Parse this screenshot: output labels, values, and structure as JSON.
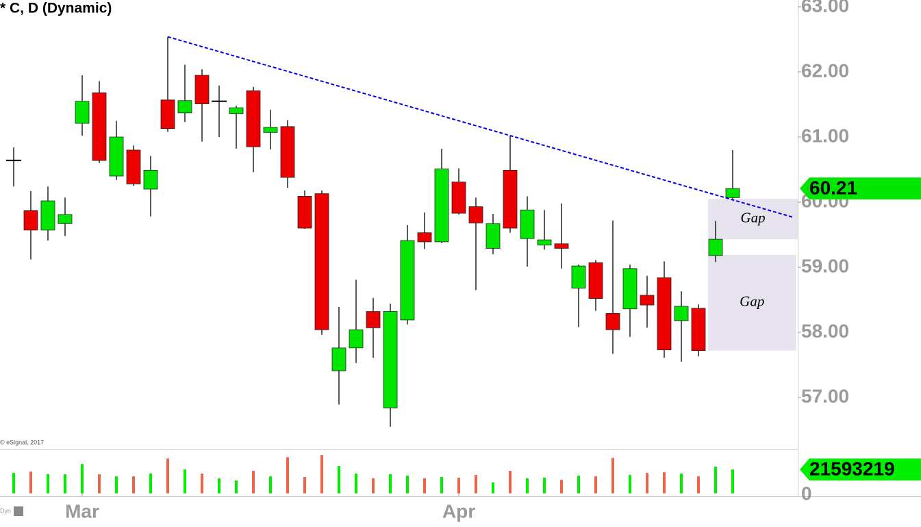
{
  "chart_data": {
    "type": "candlestick",
    "title": "* C, D (Dynamic)",
    "copyright": "© eSignal, 2017",
    "source_tag": "Dyn",
    "categories": [
      null,
      null,
      null,
      null,
      "Mar",
      null,
      null,
      null,
      null,
      null,
      null,
      null,
      null,
      null,
      null,
      null,
      null,
      null,
      null,
      null,
      null,
      null,
      null,
      null,
      null,
      null,
      "Apr",
      null,
      null,
      null,
      null,
      null,
      null,
      null,
      null,
      null,
      null,
      null,
      null,
      null,
      null,
      null,
      null
    ],
    "open": [
      60.64,
      59.87,
      59.57,
      59.67,
      61.21,
      61.68,
      60.4,
      60.8,
      60.2,
      61.57,
      61.37,
      61.95,
      61.55,
      61.36,
      61.71,
      61.07,
      61.16,
      60.09,
      60.13,
      57.41,
      57.76,
      58.32,
      56.84,
      58.19,
      59.53,
      59.39,
      60.31,
      59.93,
      59.29,
      60.49,
      59.44,
      59.34,
      59.36,
      58.68,
      59.07,
      58.29,
      58.36,
      58.57,
      58.84,
      58.18,
      58.37,
      59.18,
      60.07
    ],
    "high": [
      60.84,
      60.17,
      60.24,
      60.07,
      61.95,
      61.86,
      61.25,
      60.87,
      60.71,
      62.54,
      62.11,
      62.04,
      61.79,
      61.48,
      61.77,
      61.42,
      61.26,
      60.18,
      60.18,
      58.39,
      58.81,
      58.53,
      58.44,
      59.65,
      59.84,
      60.82,
      60.52,
      60.07,
      59.82,
      61.02,
      60.09,
      59.88,
      59.98,
      59.04,
      59.11,
      59.72,
      59.04,
      58.87,
      59.09,
      58.63,
      58.43,
      59.71,
      60.8
    ],
    "low": [
      60.24,
      59.12,
      59.41,
      59.48,
      61.02,
      60.6,
      60.34,
      60.25,
      59.78,
      61.08,
      61.23,
      60.93,
      61.0,
      60.82,
      60.46,
      60.81,
      60.22,
      59.59,
      57.96,
      56.89,
      57.53,
      57.61,
      56.55,
      58.12,
      59.28,
      59.37,
      59.81,
      58.65,
      59.2,
      59.53,
      59.01,
      59.27,
      58.98,
      58.08,
      58.33,
      57.67,
      57.93,
      58.07,
      57.61,
      57.55,
      57.63,
      59.08,
      60.05
    ],
    "close": [
      60.64,
      59.57,
      60.02,
      59.81,
      61.55,
      60.64,
      61.0,
      60.28,
      60.49,
      61.13,
      61.56,
      61.51,
      61.55,
      61.45,
      60.85,
      61.15,
      60.38,
      59.6,
      58.04,
      57.76,
      58.04,
      58.07,
      58.32,
      59.41,
      59.39,
      60.51,
      59.83,
      59.68,
      59.67,
      59.6,
      59.88,
      59.42,
      59.29,
      59.02,
      58.52,
      58.04,
      58.98,
      58.42,
      57.73,
      58.4,
      57.72,
      59.43,
      60.21
    ],
    "up_color": "#00e600",
    "down_color": "#ee0000",
    "ylim": [
      56.21,
      63.105
    ],
    "yticks": [
      {
        "value": 57,
        "label": "57.00"
      },
      {
        "value": 58,
        "label": "58.00"
      },
      {
        "value": 59,
        "label": "59.00"
      },
      {
        "value": 60,
        "label": "60.00"
      },
      {
        "value": 61,
        "label": "61.00"
      },
      {
        "value": 62,
        "label": "62.00"
      },
      {
        "value": 63,
        "label": "63.00"
      }
    ],
    "trendline": {
      "color": "#0000ee",
      "x": [
        9,
        45.5
      ],
      "y": [
        62.54,
        59.77
      ]
    },
    "gaps": [
      {
        "label": "Gap",
        "x": [
          40.56,
          45.8
        ],
        "high": 60.05,
        "low": 59.43
      },
      {
        "label": "Gap",
        "x": [
          40.56,
          45.7
        ],
        "high": 59.19,
        "low": 57.72
      }
    ],
    "volume": {
      "values": [
        18500000,
        19700000,
        17300000,
        17300000,
        26500000,
        17300000,
        15400000,
        15400000,
        17900000,
        31500000,
        21600000,
        17900000,
        13600000,
        11700000,
        20400000,
        15400000,
        32700000,
        14800000,
        34600000,
        24700000,
        17900000,
        13600000,
        17300000,
        16000000,
        13600000,
        14800000,
        14200000,
        16700000,
        9900000,
        20400000,
        13600000,
        14200000,
        12300000,
        16000000,
        15400000,
        32100000,
        16700000,
        18500000,
        19100000,
        17900000,
        15400000,
        24100000,
        21593219
      ],
      "up_color": "#00ee00",
      "down_color": "#f0644a",
      "ylim": [
        0,
        39000000
      ],
      "yticks": [
        0
      ]
    }
  }
}
